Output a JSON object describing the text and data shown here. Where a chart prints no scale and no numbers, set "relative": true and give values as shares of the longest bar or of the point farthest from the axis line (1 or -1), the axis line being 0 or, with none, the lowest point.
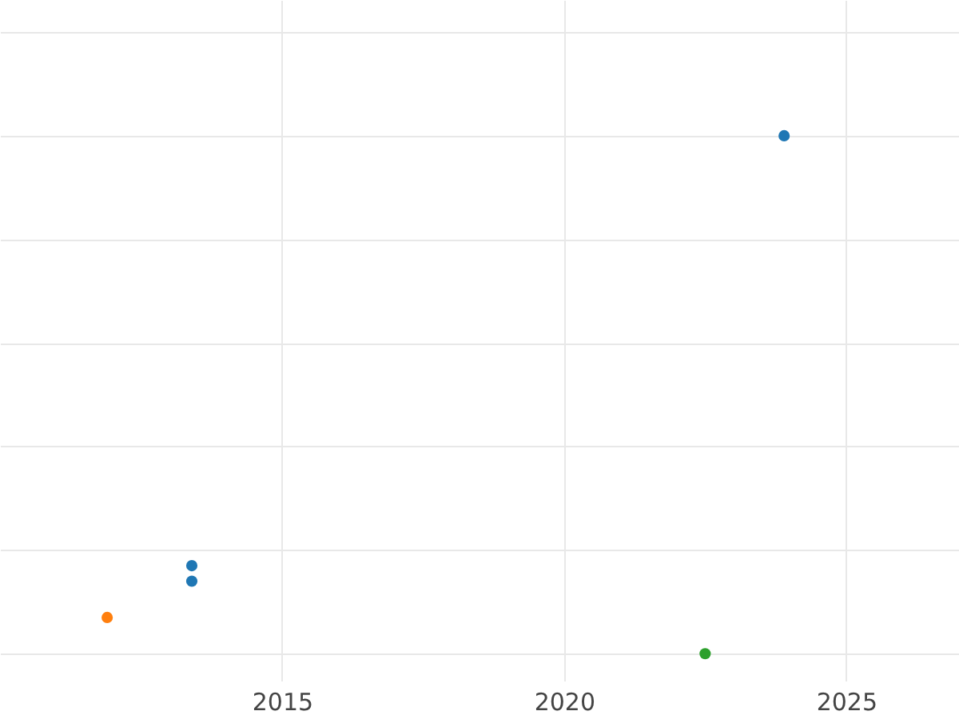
{
  "chart_data": {
    "type": "scatter",
    "relative": true,
    "xlim": [
      2010,
      2027
    ],
    "xticks": [
      2015,
      2020,
      2025
    ],
    "grid": true,
    "marker": "circle",
    "series": [
      {
        "color": "#1f77b4",
        "x": [
          2013.4,
          2013.4,
          2023.9
        ],
        "values": [
          0.17,
          0.14,
          1
        ]
      },
      {
        "color": "#ff7f0e",
        "x": [
          2011.9
        ],
        "values": [
          0.07
        ]
      },
      {
        "color": "#2ca02c",
        "x": [
          2022.5
        ],
        "values": [
          0
        ]
      }
    ]
  }
}
